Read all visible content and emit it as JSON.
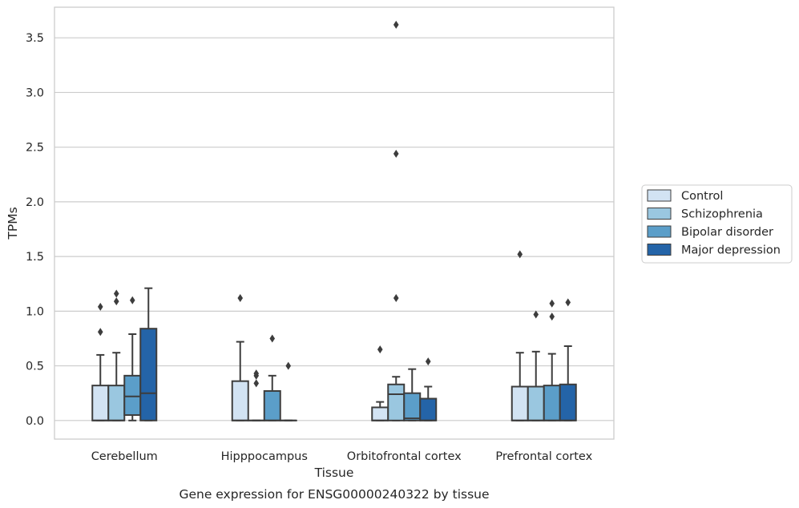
{
  "chart_data": {
    "type": "box",
    "title": "",
    "caption": "Gene expression for ENSG00000240322 by tissue",
    "xlabel": "Tissue",
    "ylabel": "TPMs",
    "ylim": [
      -0.17,
      3.78
    ],
    "yticks": [
      0.0,
      0.5,
      1.0,
      1.5,
      2.0,
      2.5,
      3.0,
      3.5
    ],
    "ytick_labels": [
      "0.0",
      "0.5",
      "1.0",
      "1.5",
      "2.0",
      "2.5",
      "3.0",
      "3.5"
    ],
    "grid": "horizontal",
    "legend_position": "right",
    "categories": [
      "Cerebellum",
      "Hipppocampus",
      "Orbitofrontal cortex",
      "Prefrontal cortex"
    ],
    "series": [
      {
        "name": "Control",
        "color": "#d2e3f3",
        "boxes": [
          {
            "q1": 0.0,
            "median": 0.0,
            "q3": 0.32,
            "whislo": 0.0,
            "whishi": 0.6,
            "fliers": [
              0.81,
              1.04
            ]
          },
          {
            "q1": 0.0,
            "median": 0.0,
            "q3": 0.36,
            "whislo": 0.0,
            "whishi": 0.72,
            "fliers": [
              1.12
            ]
          },
          {
            "q1": 0.0,
            "median": 0.0,
            "q3": 0.12,
            "whislo": 0.0,
            "whishi": 0.17,
            "fliers": [
              0.65
            ]
          },
          {
            "q1": 0.0,
            "median": 0.0,
            "q3": 0.31,
            "whislo": 0.0,
            "whishi": 0.62,
            "fliers": [
              1.52
            ]
          }
        ]
      },
      {
        "name": "Schizophrenia",
        "color": "#9ac7e0",
        "boxes": [
          {
            "q1": 0.0,
            "median": 0.0,
            "q3": 0.32,
            "whislo": 0.0,
            "whishi": 0.62,
            "fliers": [
              1.09,
              1.16
            ]
          },
          {
            "q1": 0.0,
            "median": 0.0,
            "q3": 0.0,
            "whislo": 0.0,
            "whishi": 0.0,
            "fliers": [
              0.34,
              0.41,
              0.43
            ]
          },
          {
            "q1": 0.0,
            "median": 0.24,
            "q3": 0.33,
            "whislo": 0.0,
            "whishi": 0.4,
            "fliers": [
              1.12,
              2.44,
              3.62
            ]
          },
          {
            "q1": 0.0,
            "median": 0.0,
            "q3": 0.31,
            "whislo": 0.0,
            "whishi": 0.63,
            "fliers": [
              0.97
            ]
          }
        ]
      },
      {
        "name": "Bipolar disorder",
        "color": "#5b9ec9",
        "boxes": [
          {
            "q1": 0.05,
            "median": 0.22,
            "q3": 0.41,
            "whislo": 0.0,
            "whishi": 0.79,
            "fliers": [
              1.1
            ]
          },
          {
            "q1": 0.0,
            "median": 0.0,
            "q3": 0.27,
            "whislo": 0.0,
            "whishi": 0.41,
            "fliers": [
              0.75
            ]
          },
          {
            "q1": 0.0,
            "median": 0.02,
            "q3": 0.25,
            "whislo": 0.0,
            "whishi": 0.47,
            "fliers": []
          },
          {
            "q1": 0.0,
            "median": 0.0,
            "q3": 0.32,
            "whislo": 0.0,
            "whishi": 0.61,
            "fliers": [
              0.95,
              1.07
            ]
          }
        ]
      },
      {
        "name": "Major depression",
        "color": "#2464a8",
        "boxes": [
          {
            "q1": 0.0,
            "median": 0.25,
            "q3": 0.84,
            "whislo": 0.0,
            "whishi": 1.21,
            "fliers": []
          },
          {
            "q1": 0.0,
            "median": 0.0,
            "q3": 0.0,
            "whislo": 0.0,
            "whishi": 0.0,
            "fliers": [
              0.5
            ]
          },
          {
            "q1": 0.0,
            "median": 0.0,
            "q3": 0.2,
            "whislo": 0.0,
            "whishi": 0.31,
            "fliers": [
              0.54
            ]
          },
          {
            "q1": 0.0,
            "median": 0.0,
            "q3": 0.33,
            "whislo": 0.0,
            "whishi": 0.68,
            "fliers": [
              1.08
            ]
          }
        ]
      }
    ]
  }
}
